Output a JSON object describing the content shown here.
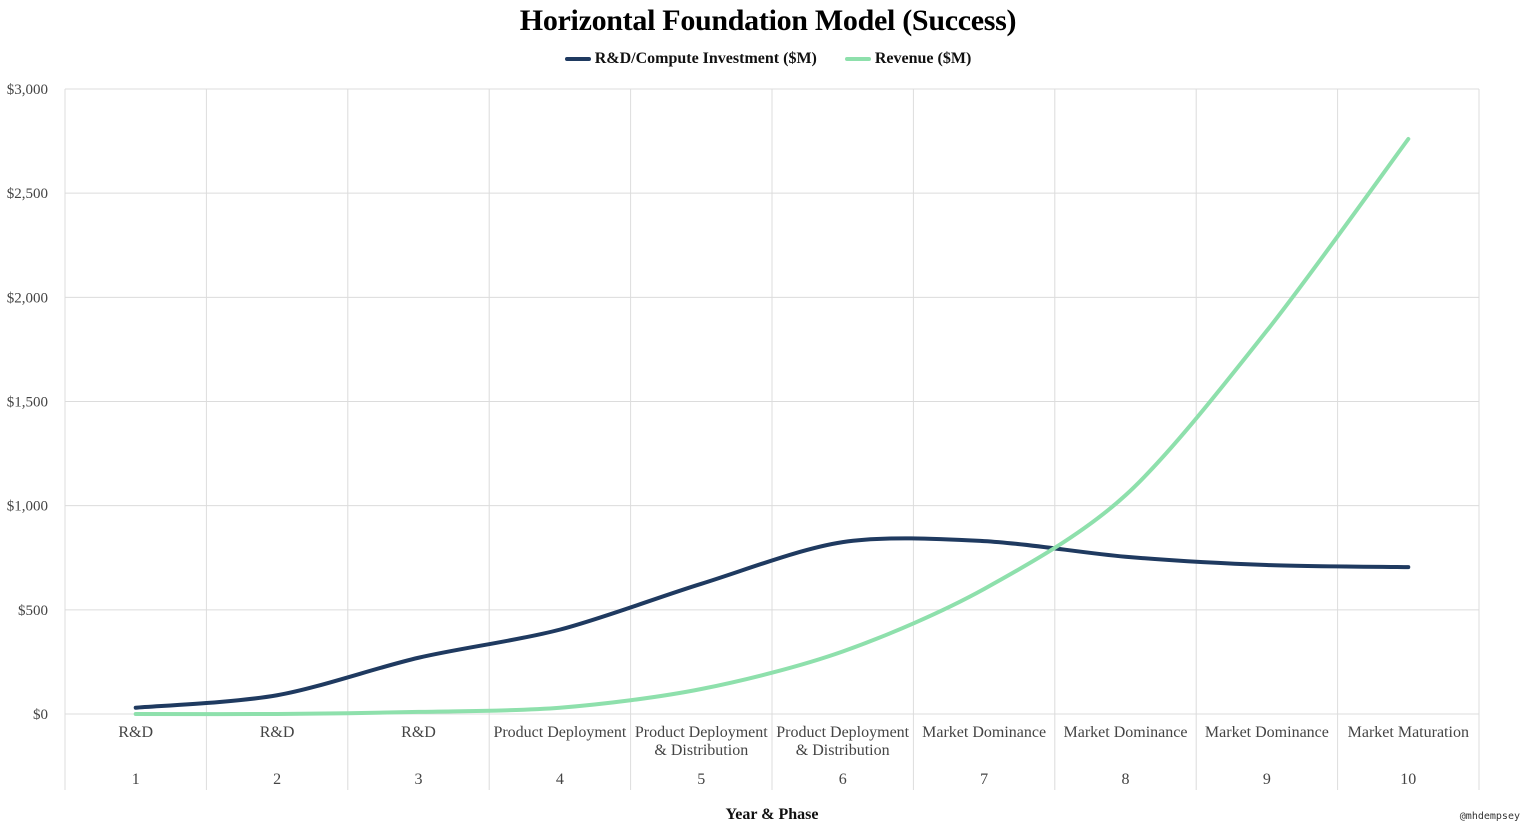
{
  "chart_data": {
    "type": "line",
    "title": "Horizontal Foundation Model (Success)",
    "xlabel": "Year & Phase",
    "ylabel": "",
    "ylim": [
      0,
      3000
    ],
    "yticks": [
      "$0",
      "$500",
      "$1,000",
      "$1,500",
      "$2,000",
      "$2,500",
      "$3,000"
    ],
    "categories": [
      "1",
      "2",
      "3",
      "4",
      "5",
      "6",
      "7",
      "8",
      "9",
      "10"
    ],
    "phases": [
      [
        "R&D"
      ],
      [
        "R&D"
      ],
      [
        "R&D"
      ],
      [
        "Product Deployment"
      ],
      [
        "Product Deployment",
        "& Distribution"
      ],
      [
        "Product Deployment",
        "& Distribution"
      ],
      [
        "Market Dominance"
      ],
      [
        "Market Dominance"
      ],
      [
        "Market Dominance"
      ],
      [
        "Market Maturation"
      ]
    ],
    "series": [
      {
        "name": "R&D/Compute Investment ($M)",
        "color": "#1f3a60",
        "values": [
          30,
          90,
          270,
          405,
          625,
          825,
          830,
          755,
          715,
          705
        ]
      },
      {
        "name": "Revenue ($M)",
        "color": "#8ee0ac",
        "values": [
          0,
          0,
          10,
          30,
          120,
          300,
          600,
          1050,
          1840,
          2760
        ]
      }
    ],
    "grid": true,
    "legend_position": "top"
  },
  "watermark": "@mhdempsey"
}
